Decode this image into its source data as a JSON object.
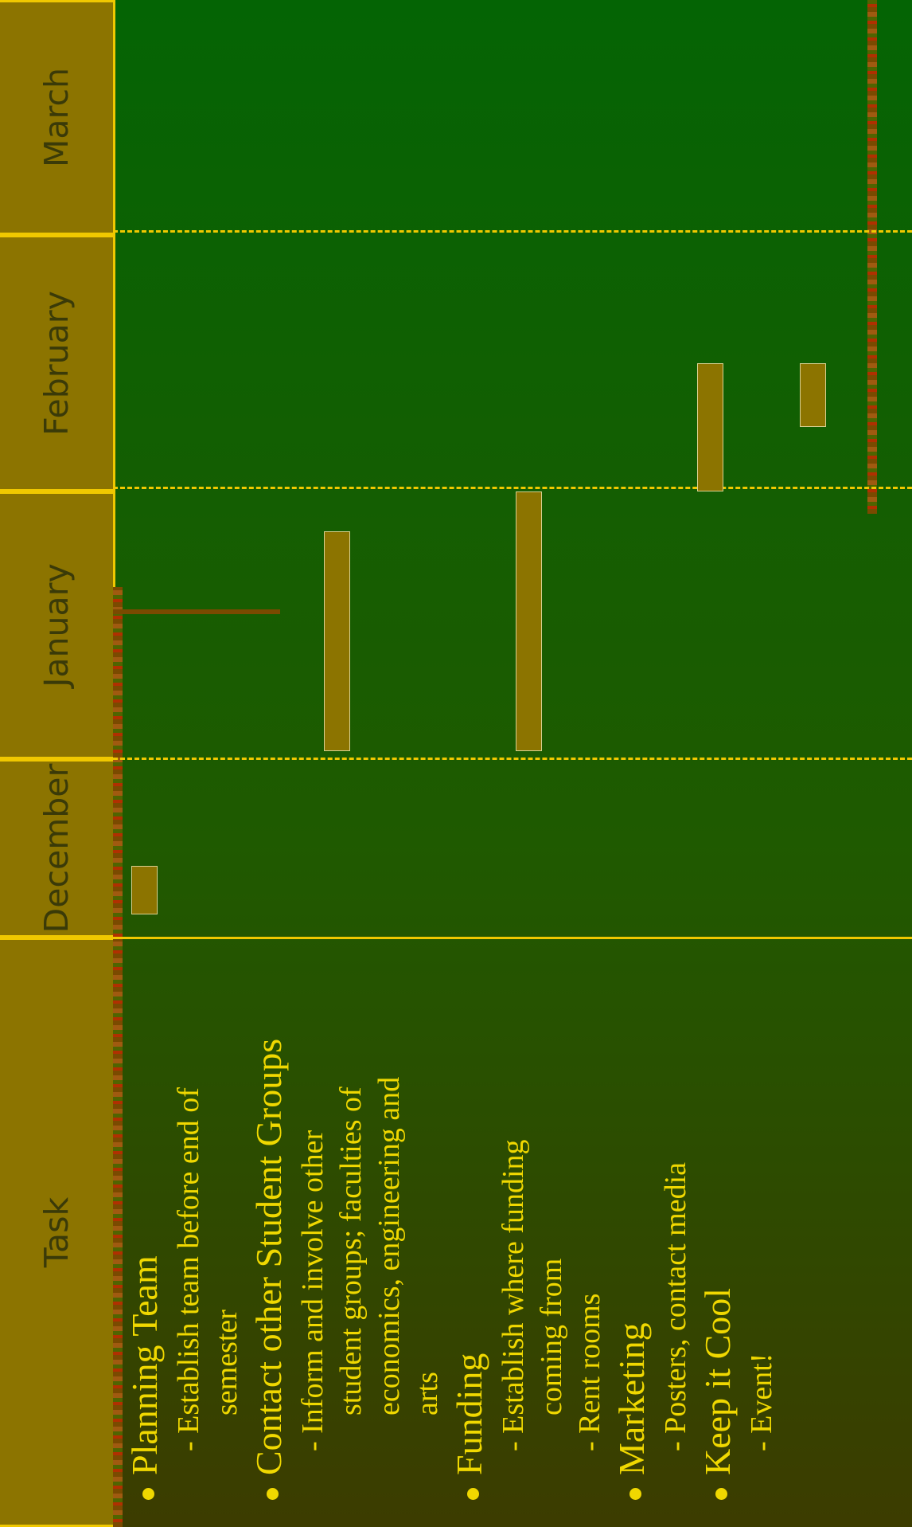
{
  "headers": {
    "task": "Task",
    "months": [
      "December",
      "January",
      "February",
      "March"
    ]
  },
  "tasks": [
    {
      "text": "Planning Team",
      "level": 1
    },
    {
      "text": "- Establish team before end of",
      "level": 2
    },
    {
      "text": "semester",
      "level": 3
    },
    {
      "text": "Contact other Student Groups",
      "level": 1
    },
    {
      "text": "- Inform and involve other",
      "level": 2
    },
    {
      "text": "student groups; faculties of",
      "level": 3
    },
    {
      "text": "economics, engineering and",
      "level": 3
    },
    {
      "text": "arts",
      "level": 3
    },
    {
      "text": "Funding",
      "level": 1
    },
    {
      "text": "- Establish where funding",
      "level": 2
    },
    {
      "text": "coming from",
      "level": 3
    },
    {
      "text": "- Rent rooms",
      "level": 2
    },
    {
      "text": "Marketing",
      "level": 1
    },
    {
      "text": "- Posters, contact media",
      "level": 2
    },
    {
      "text": "Keep it Cool",
      "level": 1
    },
    {
      "text": "- Event!",
      "level": 2
    }
  ],
  "colors": {
    "header": "#8c7400",
    "accent": "#f0c800",
    "bar": "#8c7400",
    "text": "#f0d800"
  },
  "chart_data": {
    "type": "bar",
    "orientation": "gantt",
    "x_axis": "months",
    "categories": [
      "December",
      "January",
      "February",
      "March"
    ],
    "bars": [
      {
        "task": "Planning Team",
        "start": 0.13,
        "end": 0.4
      },
      {
        "task": "Contact other Student Groups",
        "start": 1.03,
        "end": 1.85
      },
      {
        "task": "Funding",
        "start": 1.03,
        "end": 2.0
      },
      {
        "task": "Marketing",
        "start": 2.0,
        "end": 2.48
      },
      {
        "task": "Keep it Cool",
        "start": 2.24,
        "end": 2.48
      }
    ]
  }
}
